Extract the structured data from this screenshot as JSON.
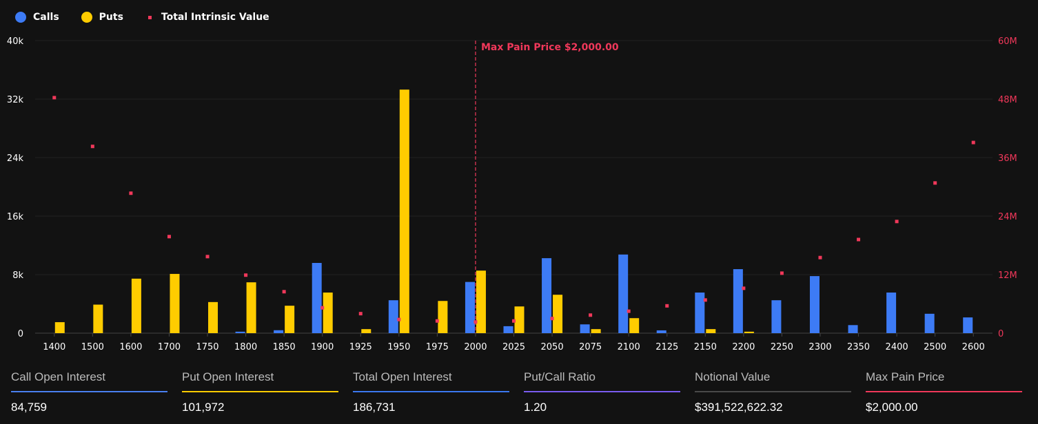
{
  "legend": [
    {
      "label": "Calls",
      "color": "#3d7bf5"
    },
    {
      "label": "Puts",
      "color": "#ffcc00"
    },
    {
      "label": "Total Intrinsic Value",
      "color": "#f0385a"
    }
  ],
  "chart_data": {
    "type": "bar",
    "categories": [
      "1400",
      "1500",
      "1600",
      "1700",
      "1750",
      "1800",
      "1850",
      "1900",
      "1925",
      "1950",
      "1975",
      "2000",
      "2025",
      "2050",
      "2075",
      "2100",
      "2125",
      "2150",
      "2200",
      "2250",
      "2300",
      "2350",
      "2400",
      "2500",
      "2600"
    ],
    "series": [
      {
        "name": "Calls",
        "axis": "left",
        "type": "bar",
        "color": "#3d7bf5",
        "values": [
          0,
          0,
          0,
          0,
          0,
          200,
          400,
          9600,
          0,
          4500,
          0,
          7000,
          950,
          10250,
          1200,
          10750,
          380,
          5550,
          8750,
          4500,
          7800,
          1100,
          5550,
          2650,
          2150
        ]
      },
      {
        "name": "Puts",
        "axis": "left",
        "type": "bar",
        "color": "#ffcc00",
        "values": [
          1500,
          3900,
          7450,
          8100,
          4250,
          6950,
          3750,
          5550,
          550,
          33300,
          4400,
          8550,
          3650,
          5250,
          550,
          2050,
          0,
          550,
          200,
          0,
          0,
          0,
          0,
          0,
          0
        ]
      },
      {
        "name": "Total Intrinsic Value",
        "axis": "right",
        "type": "scatter",
        "color": "#f0385a",
        "values": [
          48300000,
          38300000,
          28700000,
          19800000,
          15700000,
          11900000,
          8500000,
          5200000,
          4000000,
          2800000,
          2500000,
          2300000,
          2500000,
          3000000,
          3700000,
          4500000,
          5600000,
          6800000,
          9200000,
          12300000,
          15500000,
          19200000,
          22900000,
          30800000,
          39100000
        ]
      }
    ],
    "y_left": {
      "range": [
        0,
        40000
      ],
      "ticks": [
        "0",
        "8k",
        "16k",
        "24k",
        "32k",
        "40k"
      ]
    },
    "y_right": {
      "range": [
        0,
        60000000
      ],
      "ticks": [
        "0",
        "12M",
        "24M",
        "36M",
        "48M",
        "60M"
      ],
      "color": "#f0385a"
    },
    "grid": true,
    "legend_position": "top-left",
    "annotation": {
      "label": "Max Pain Price $2,000.00",
      "category": "2000",
      "color": "#f0385a"
    }
  },
  "stats": [
    {
      "label": "Call Open Interest",
      "value": "84,759",
      "color": "#4a80f0"
    },
    {
      "label": "Put Open Interest",
      "value": "101,972",
      "color": "#ffcc00"
    },
    {
      "label": "Total Open Interest",
      "value": "186,731",
      "color": "#3b78f0"
    },
    {
      "label": "Put/Call Ratio",
      "value": "1.20",
      "color": "#7a5cf0"
    },
    {
      "label": "Notional Value",
      "value": "$391,522,622.32",
      "color": "#4a4a4a"
    },
    {
      "label": "Max Pain Price",
      "value": "$2,000.00",
      "color": "#f0385a"
    }
  ]
}
